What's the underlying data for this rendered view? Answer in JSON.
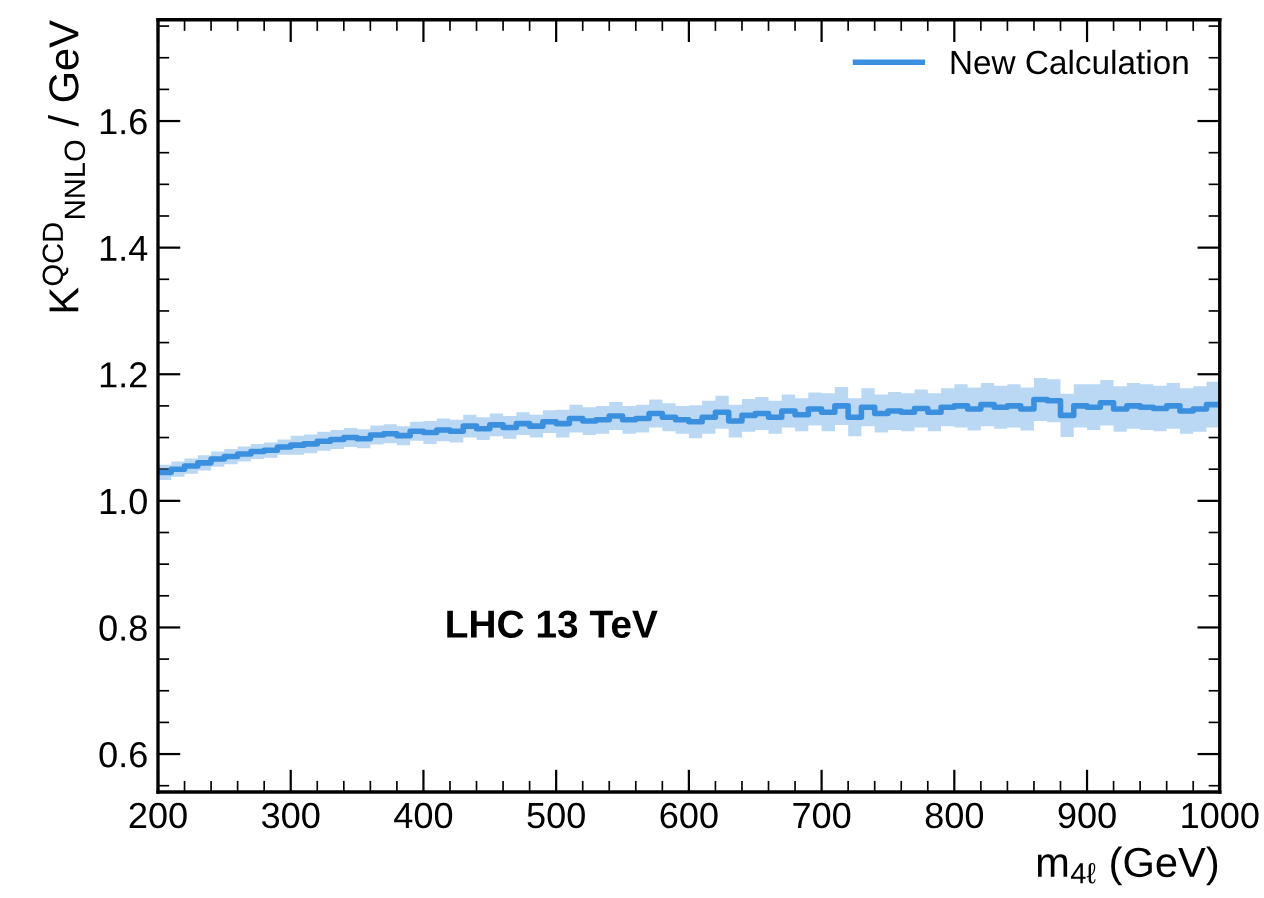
{
  "chart_data": {
    "type": "step",
    "xlabel": "m$_{4ℓ}$ (GeV)",
    "ylabel": "K$^{QCD}$$_{NNLO}$ / GeV",
    "annotations": [
      "LHC 13 TeV"
    ],
    "x": [
      200,
      210,
      220,
      230,
      240,
      250,
      260,
      270,
      280,
      290,
      300,
      310,
      320,
      330,
      340,
      350,
      360,
      370,
      380,
      390,
      400,
      410,
      420,
      430,
      440,
      450,
      460,
      470,
      480,
      490,
      500,
      510,
      520,
      530,
      540,
      550,
      560,
      570,
      580,
      590,
      600,
      610,
      620,
      630,
      640,
      650,
      660,
      670,
      680,
      690,
      700,
      710,
      720,
      730,
      740,
      750,
      760,
      770,
      780,
      790,
      800,
      810,
      820,
      830,
      840,
      850,
      860,
      870,
      880,
      890,
      900,
      910,
      920,
      930,
      940,
      950,
      960,
      970,
      980,
      990,
      1000
    ],
    "series": [
      {
        "name": "New Calculation",
        "color": "#3a8fde",
        "values": [
          1.045,
          1.05,
          1.055,
          1.06,
          1.066,
          1.07,
          1.074,
          1.078,
          1.08,
          1.085,
          1.088,
          1.09,
          1.094,
          1.097,
          1.1,
          1.098,
          1.104,
          1.106,
          1.103,
          1.11,
          1.108,
          1.112,
          1.11,
          1.118,
          1.114,
          1.12,
          1.116,
          1.122,
          1.118,
          1.125,
          1.122,
          1.13,
          1.126,
          1.128,
          1.134,
          1.128,
          1.13,
          1.138,
          1.132,
          1.128,
          1.125,
          1.132,
          1.14,
          1.126,
          1.135,
          1.138,
          1.132,
          1.142,
          1.136,
          1.145,
          1.14,
          1.15,
          1.132,
          1.148,
          1.138,
          1.142,
          1.14,
          1.146,
          1.14,
          1.148,
          1.15,
          1.145,
          1.152,
          1.148,
          1.15,
          1.145,
          1.16,
          1.158,
          1.135,
          1.15,
          1.148,
          1.155,
          1.145,
          1.15,
          1.148,
          1.146,
          1.15,
          1.142,
          1.145,
          1.152,
          1.152
        ],
        "lower": [
          1.033,
          1.038,
          1.043,
          1.048,
          1.054,
          1.058,
          1.062,
          1.066,
          1.068,
          1.073,
          1.073,
          1.075,
          1.079,
          1.082,
          1.085,
          1.083,
          1.089,
          1.091,
          1.088,
          1.095,
          1.09,
          1.094,
          1.092,
          1.1,
          1.096,
          1.102,
          1.098,
          1.104,
          1.1,
          1.107,
          1.1,
          1.108,
          1.104,
          1.106,
          1.112,
          1.106,
          1.108,
          1.116,
          1.11,
          1.106,
          1.099,
          1.106,
          1.114,
          1.1,
          1.109,
          1.112,
          1.106,
          1.116,
          1.11,
          1.119,
          1.11,
          1.12,
          1.102,
          1.118,
          1.108,
          1.112,
          1.11,
          1.116,
          1.11,
          1.118,
          1.116,
          1.111,
          1.118,
          1.114,
          1.116,
          1.111,
          1.126,
          1.124,
          1.101,
          1.116,
          1.112,
          1.119,
          1.109,
          1.114,
          1.112,
          1.11,
          1.114,
          1.106,
          1.109,
          1.116,
          1.116
        ],
        "upper": [
          1.057,
          1.062,
          1.067,
          1.072,
          1.078,
          1.082,
          1.086,
          1.09,
          1.092,
          1.097,
          1.103,
          1.105,
          1.109,
          1.112,
          1.115,
          1.113,
          1.119,
          1.121,
          1.118,
          1.125,
          1.126,
          1.13,
          1.128,
          1.136,
          1.132,
          1.138,
          1.134,
          1.14,
          1.136,
          1.143,
          1.144,
          1.152,
          1.148,
          1.15,
          1.156,
          1.15,
          1.152,
          1.16,
          1.154,
          1.15,
          1.151,
          1.158,
          1.166,
          1.152,
          1.161,
          1.164,
          1.158,
          1.168,
          1.162,
          1.171,
          1.17,
          1.18,
          1.162,
          1.178,
          1.168,
          1.172,
          1.17,
          1.176,
          1.17,
          1.178,
          1.184,
          1.179,
          1.186,
          1.182,
          1.184,
          1.179,
          1.194,
          1.192,
          1.169,
          1.184,
          1.184,
          1.191,
          1.181,
          1.186,
          1.184,
          1.182,
          1.186,
          1.178,
          1.181,
          1.188,
          1.188
        ]
      }
    ],
    "xlim": [
      200,
      1000
    ],
    "ylim": [
      0.54,
      1.76
    ],
    "xticks": [
      200,
      300,
      400,
      500,
      600,
      700,
      800,
      900,
      1000
    ],
    "yticks": [
      {
        "value": 0.6,
        "label": "0.6"
      },
      {
        "value": 0.8,
        "label": "0.8"
      },
      {
        "value": 1.0,
        "label": "1.0"
      },
      {
        "value": 1.2,
        "label": "1.2"
      },
      {
        "value": 1.4,
        "label": "1.4"
      },
      {
        "value": 1.6,
        "label": "1.6"
      }
    ],
    "legend": "top right",
    "grid": false,
    "line_style": "solid"
  }
}
